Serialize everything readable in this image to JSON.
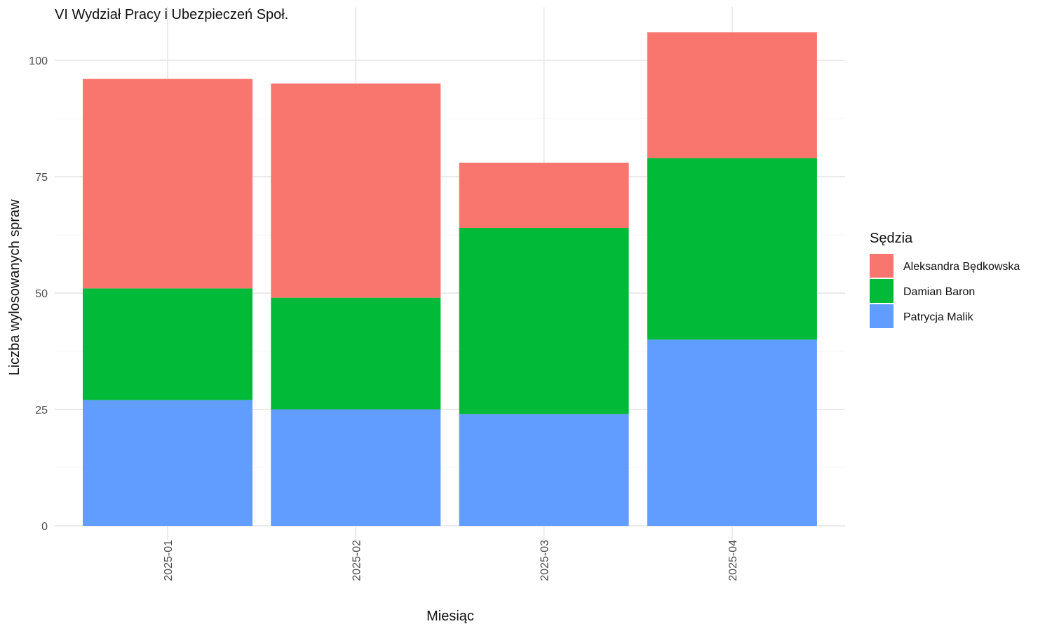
{
  "chart_data": {
    "type": "bar",
    "stacked": true,
    "title": "VI Wydział Pracy i Ubezpieczeń Społ.",
    "xlabel": "Miesiąc",
    "ylabel": "Liczba wylosowanych spraw",
    "categories": [
      "2025-01",
      "2025-02",
      "2025-03",
      "2025-04"
    ],
    "ylim": [
      0,
      106
    ],
    "yticks": [
      0,
      25,
      50,
      75,
      100
    ],
    "grid": true,
    "legend": {
      "title": "Sędzia",
      "placement": "right",
      "entries": [
        "Aleksandra Będkowska",
        "Damian Baron",
        "Patrycja Malik"
      ]
    },
    "series": [
      {
        "name": "Patrycja Malik",
        "color": "#619CFF",
        "values": [
          27,
          25,
          24,
          40
        ]
      },
      {
        "name": "Damian Baron",
        "color": "#00BA38",
        "values": [
          24,
          24,
          40,
          39
        ]
      },
      {
        "name": "Aleksandra Będkowska",
        "color": "#F8766D",
        "values": [
          45,
          46,
          14,
          27
        ]
      }
    ]
  }
}
